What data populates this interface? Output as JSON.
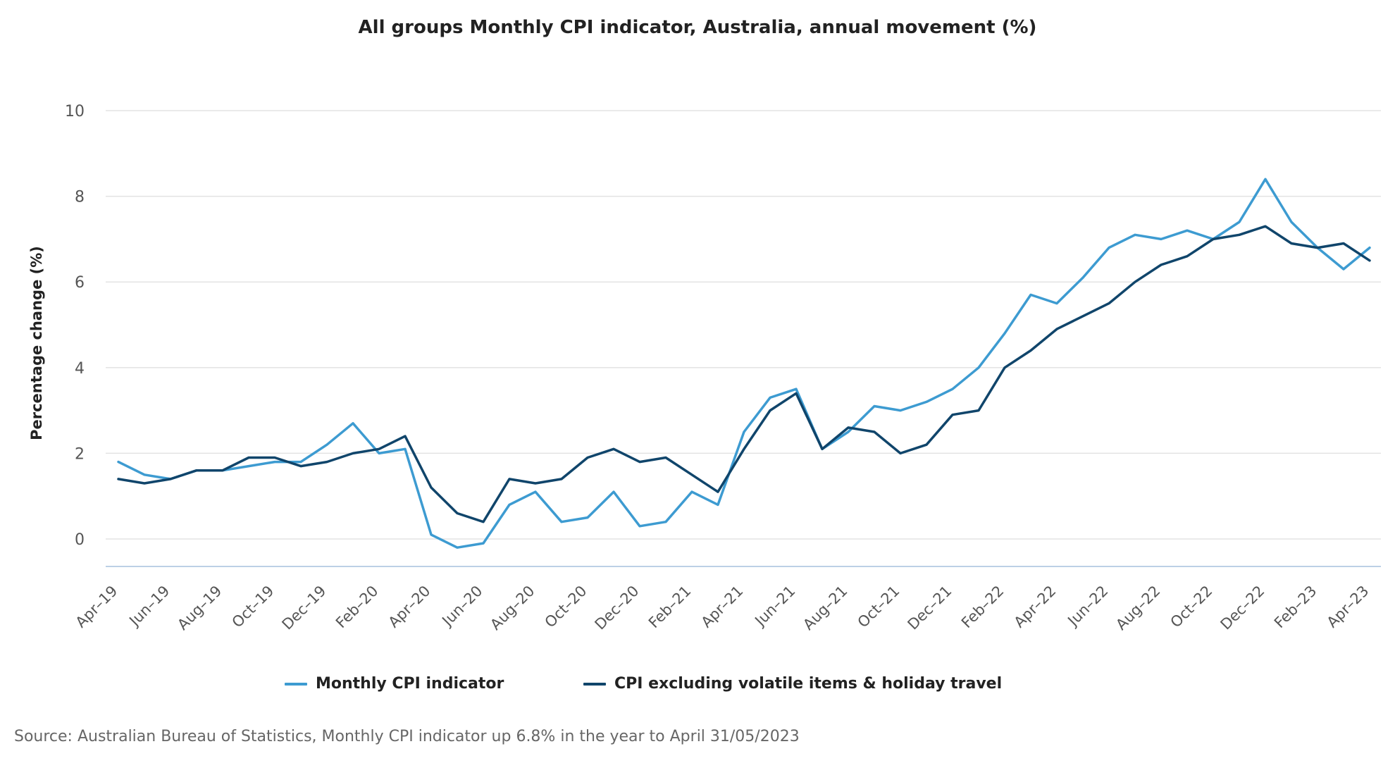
{
  "chart_data": {
    "type": "line",
    "title": "All groups Monthly CPI indicator, Australia, annual movement (%)",
    "xlabel": "",
    "ylabel": "Percentage change (%)",
    "ylim": [
      -0.6,
      10
    ],
    "yticks": [
      0,
      2,
      4,
      6,
      8,
      10
    ],
    "grid": true,
    "legend_position": "bottom",
    "x": [
      "Apr-19",
      "May-19",
      "Jun-19",
      "Jul-19",
      "Aug-19",
      "Sep-19",
      "Oct-19",
      "Nov-19",
      "Dec-19",
      "Jan-20",
      "Feb-20",
      "Mar-20",
      "Apr-20",
      "May-20",
      "Jun-20",
      "Jul-20",
      "Aug-20",
      "Sep-20",
      "Oct-20",
      "Nov-20",
      "Dec-20",
      "Jan-21",
      "Feb-21",
      "Mar-21",
      "Apr-21",
      "May-21",
      "Jun-21",
      "Jul-21",
      "Aug-21",
      "Sep-21",
      "Oct-21",
      "Nov-21",
      "Dec-21",
      "Jan-22",
      "Feb-22",
      "Mar-22",
      "Apr-22",
      "May-22",
      "Jun-22",
      "Jul-22",
      "Aug-22",
      "Sep-22",
      "Oct-22",
      "Nov-22",
      "Dec-22",
      "Jan-23",
      "Feb-23",
      "Mar-23",
      "Apr-23"
    ],
    "tick_labels": [
      "Apr–19",
      "Jun–19",
      "Aug–19",
      "Oct–19",
      "Dec–19",
      "Feb–20",
      "Apr–20",
      "Jun–20",
      "Aug–20",
      "Oct–20",
      "Dec–20",
      "Feb–21",
      "Apr–21",
      "Jun–21",
      "Aug–21",
      "Oct–21",
      "Dec–21",
      "Feb–22",
      "Apr–22",
      "Jun–22",
      "Aug–22",
      "Oct–22",
      "Dec–22",
      "Feb–23",
      "Apr–23"
    ],
    "series": [
      {
        "name": "Monthly CPI indicator",
        "color": "#3d9bd1",
        "values": [
          1.8,
          1.5,
          1.4,
          1.6,
          1.6,
          1.7,
          1.8,
          1.8,
          2.2,
          2.7,
          2.0,
          2.1,
          0.1,
          -0.2,
          -0.1,
          0.8,
          1.1,
          0.4,
          0.5,
          1.1,
          0.3,
          0.4,
          1.1,
          0.8,
          2.5,
          3.3,
          3.5,
          2.1,
          2.5,
          3.1,
          3.0,
          3.2,
          3.5,
          4.0,
          4.8,
          5.7,
          5.5,
          6.1,
          6.8,
          7.1,
          7.0,
          7.2,
          7.0,
          7.4,
          8.4,
          7.4,
          6.8,
          6.3,
          6.8
        ]
      },
      {
        "name": "CPI excluding volatile items & holiday travel",
        "color": "#10456b",
        "values": [
          1.4,
          1.3,
          1.4,
          1.6,
          1.6,
          1.9,
          1.9,
          1.7,
          1.8,
          2.0,
          2.1,
          2.4,
          1.2,
          0.6,
          0.4,
          1.4,
          1.3,
          1.4,
          1.9,
          2.1,
          1.8,
          1.9,
          1.5,
          1.1,
          2.1,
          3.0,
          3.4,
          2.1,
          2.6,
          2.5,
          2.0,
          2.2,
          2.9,
          3.0,
          4.0,
          4.4,
          4.9,
          5.2,
          5.5,
          6.0,
          6.4,
          6.6,
          7.0,
          7.1,
          7.3,
          6.9,
          6.8,
          6.9,
          6.5
        ]
      }
    ]
  },
  "legend": {
    "item1": "Monthly CPI indicator",
    "item2": "CPI excluding volatile items & holiday travel"
  },
  "source_text": "Source: Australian Bureau of Statistics, Monthly CPI indicator up 6.8% in the year to April 31/05/2023",
  "colors": {
    "series1": "#3d9bd1",
    "series2": "#10456b",
    "grid": "#e3e3e3",
    "axis": "#bcd0e6"
  }
}
